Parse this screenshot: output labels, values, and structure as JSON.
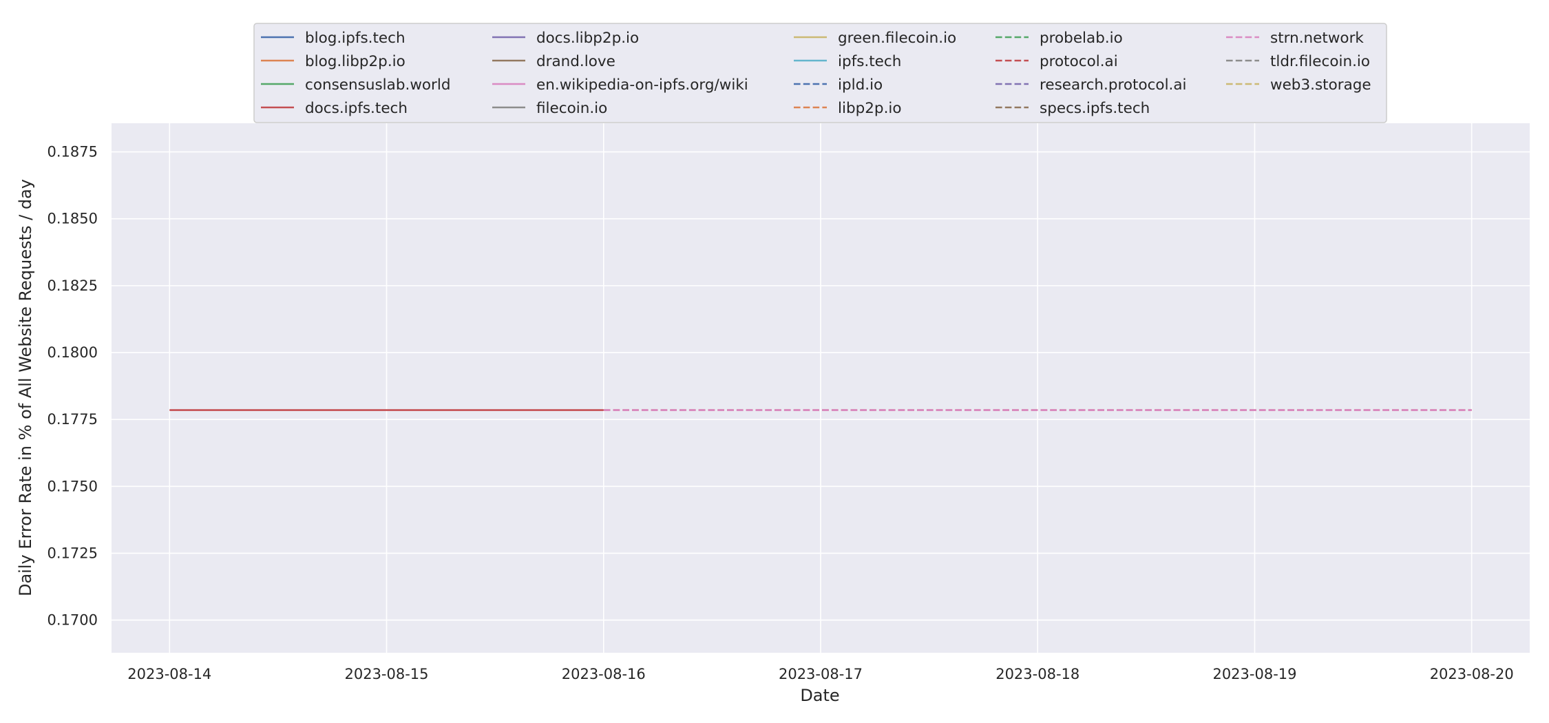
{
  "chart_data": {
    "type": "line",
    "title": "",
    "xlabel": "Date",
    "ylabel": "Daily Error Rate in % of All Website Requests / day",
    "x_ticks": [
      "2023-08-14",
      "2023-08-15",
      "2023-08-16",
      "2023-08-17",
      "2023-08-18",
      "2023-08-19",
      "2023-08-20"
    ],
    "xlim": [
      "2023-08-13T17:35",
      "2023-08-20T06:25"
    ],
    "y_ticks": [
      "0.1700",
      "0.1725",
      "0.1750",
      "0.1775",
      "0.1800",
      "0.1825",
      "0.1850",
      "0.1875"
    ],
    "ylim": [
      0.16878,
      0.18857
    ],
    "grid": true,
    "legend": {
      "position": "top-center",
      "columns": 5
    },
    "series": [
      {
        "name": "blog.ipfs.tech",
        "color": "#4c72b0",
        "dash": "solid",
        "points": []
      },
      {
        "name": "blog.libp2p.io",
        "color": "#dd8452",
        "dash": "solid",
        "points": []
      },
      {
        "name": "consensuslab.world",
        "color": "#55a868",
        "dash": "solid",
        "points": []
      },
      {
        "name": "docs.ipfs.tech",
        "color": "#c44e52",
        "dash": "solid",
        "points": [
          {
            "x": "2023-08-14",
            "y": 0.17785
          },
          {
            "x": "2023-08-15",
            "y": 0.17785
          },
          {
            "x": "2023-08-16",
            "y": 0.17785
          }
        ]
      },
      {
        "name": "docs.libp2p.io",
        "color": "#8172b3",
        "dash": "solid",
        "points": []
      },
      {
        "name": "drand.love",
        "color": "#937860",
        "dash": "solid",
        "points": []
      },
      {
        "name": "en.wikipedia-on-ipfs.org/wiki",
        "color": "#da8bc3",
        "dash": "solid",
        "points": []
      },
      {
        "name": "filecoin.io",
        "color": "#8c8c8c",
        "dash": "solid",
        "points": []
      },
      {
        "name": "green.filecoin.io",
        "color": "#ccb974",
        "dash": "solid",
        "points": []
      },
      {
        "name": "ipfs.tech",
        "color": "#64b5cd",
        "dash": "solid",
        "points": []
      },
      {
        "name": "ipld.io",
        "color": "#4c72b0",
        "dash": "dashed",
        "points": []
      },
      {
        "name": "libp2p.io",
        "color": "#dd8452",
        "dash": "dashed",
        "points": []
      },
      {
        "name": "probelab.io",
        "color": "#55a868",
        "dash": "dashed",
        "points": []
      },
      {
        "name": "protocol.ai",
        "color": "#c44e52",
        "dash": "dashed",
        "points": [
          {
            "x": "2023-08-16",
            "y": 0.17785
          },
          {
            "x": "2023-08-17",
            "y": 0.17785
          },
          {
            "x": "2023-08-18",
            "y": 0.17785
          },
          {
            "x": "2023-08-19",
            "y": 0.17785
          },
          {
            "x": "2023-08-20",
            "y": 0.17785
          }
        ]
      },
      {
        "name": "research.protocol.ai",
        "color": "#8172b3",
        "dash": "dashed",
        "points": []
      },
      {
        "name": "specs.ipfs.tech",
        "color": "#937860",
        "dash": "dashed",
        "points": []
      },
      {
        "name": "strn.network",
        "color": "#da8bc3",
        "dash": "dashed",
        "points": [
          {
            "x": "2023-08-16",
            "y": 0.17785
          },
          {
            "x": "2023-08-17",
            "y": 0.17785
          },
          {
            "x": "2023-08-18",
            "y": 0.17785
          },
          {
            "x": "2023-08-19",
            "y": 0.17785
          },
          {
            "x": "2023-08-20",
            "y": 0.17785
          }
        ]
      },
      {
        "name": "tldr.filecoin.io",
        "color": "#8c8c8c",
        "dash": "dashed",
        "points": []
      },
      {
        "name": "web3.storage",
        "color": "#ccb974",
        "dash": "dashed",
        "points": []
      }
    ],
    "colors": {
      "plot_background": "#eaeaf2",
      "grid": "#ffffff",
      "legend_background": "#eaeaf2",
      "legend_border": "#cccccc"
    }
  }
}
